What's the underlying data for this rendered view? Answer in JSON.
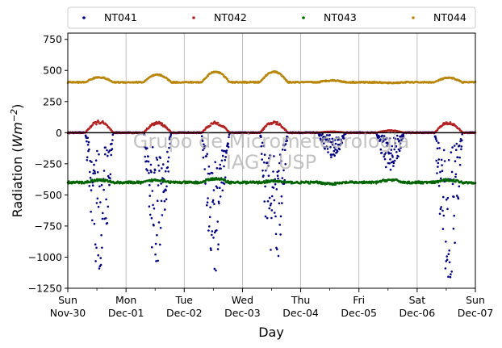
{
  "chart_data": {
    "type": "scatter",
    "title": "",
    "xlabel": "Day",
    "ylabel": "Radiation (Wm⁻²)",
    "ylabel_main": "Radiation (",
    "ylabel_unit": "Wm",
    "ylabel_exp": "−2",
    "ylabel_close": ")",
    "xlim": [
      0,
      7
    ],
    "ylim": [
      -1250,
      800
    ],
    "yticks": [
      -1250,
      -1000,
      -750,
      -500,
      -250,
      0,
      250,
      500,
      750
    ],
    "xticks": [
      {
        "day": 0,
        "line1": "Sun",
        "line2": "Nov-30"
      },
      {
        "day": 1,
        "line1": "Mon",
        "line2": "Dec-01"
      },
      {
        "day": 2,
        "line1": "Tue",
        "line2": "Dec-02"
      },
      {
        "day": 3,
        "line1": "Wed",
        "line2": "Dec-03"
      },
      {
        "day": 4,
        "line1": "Thu",
        "line2": "Dec-04"
      },
      {
        "day": 5,
        "line1": "Fri",
        "line2": "Dec-05"
      },
      {
        "day": 6,
        "line1": "Sat",
        "line2": "Dec-06"
      },
      {
        "day": 7,
        "line1": "Sun",
        "line2": "Dec-07"
      }
    ],
    "grid": "vertical",
    "legend_placement": "top, outside plot",
    "watermark": [
      "Grupo de Micrometeorologia",
      "IAG / USP"
    ],
    "series": [
      {
        "name": "NT041",
        "color": "#000080",
        "day_peaks": [
          -1180,
          -1150,
          -1140,
          -1150,
          -200,
          -320,
          -1220
        ],
        "baseline": 0
      },
      {
        "name": "NT042",
        "color": "#b22222",
        "day_peaks": [
          100,
          90,
          90,
          95,
          10,
          20,
          90
        ],
        "baseline": 0
      },
      {
        "name": "NT043",
        "color": "#006400",
        "day_peaks": [
          -380,
          -380,
          -370,
          -390,
          -410,
          -380,
          -380
        ],
        "baseline": -400
      },
      {
        "name": "NT044",
        "color": "#b8860b",
        "day_peaks": [
          445,
          465,
          490,
          490,
          420,
          400,
          440
        ],
        "baseline": 405
      }
    ]
  }
}
